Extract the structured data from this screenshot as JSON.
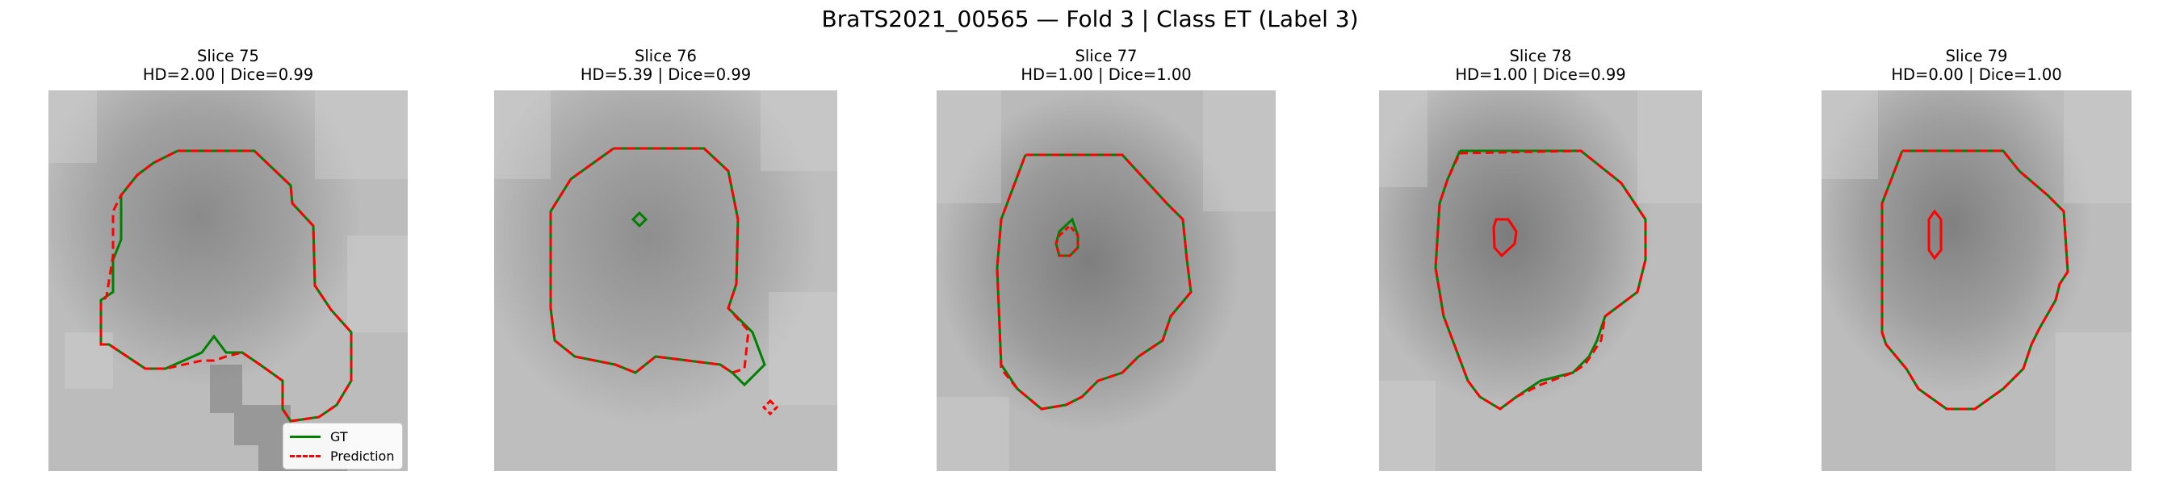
{
  "figure": {
    "title": "BraTS2021_00565 — Fold 3 | Class ET (Label 3)"
  },
  "panels": [
    {
      "slice": "Slice 75",
      "metrics": "HD=2.00 | Dice=0.99"
    },
    {
      "slice": "Slice 76",
      "metrics": "HD=5.39 | Dice=0.99"
    },
    {
      "slice": "Slice 77",
      "metrics": "HD=1.00 | Dice=1.00"
    },
    {
      "slice": "Slice 78",
      "metrics": "HD=1.00 | Dice=0.99"
    },
    {
      "slice": "Slice 79",
      "metrics": "HD=0.00 | Dice=1.00"
    }
  ],
  "legend": {
    "items": [
      {
        "label": "GT",
        "color": "#008000",
        "style": "solid"
      },
      {
        "label": "Prediction",
        "color": "#ff0000",
        "style": "dashed"
      }
    ]
  }
}
